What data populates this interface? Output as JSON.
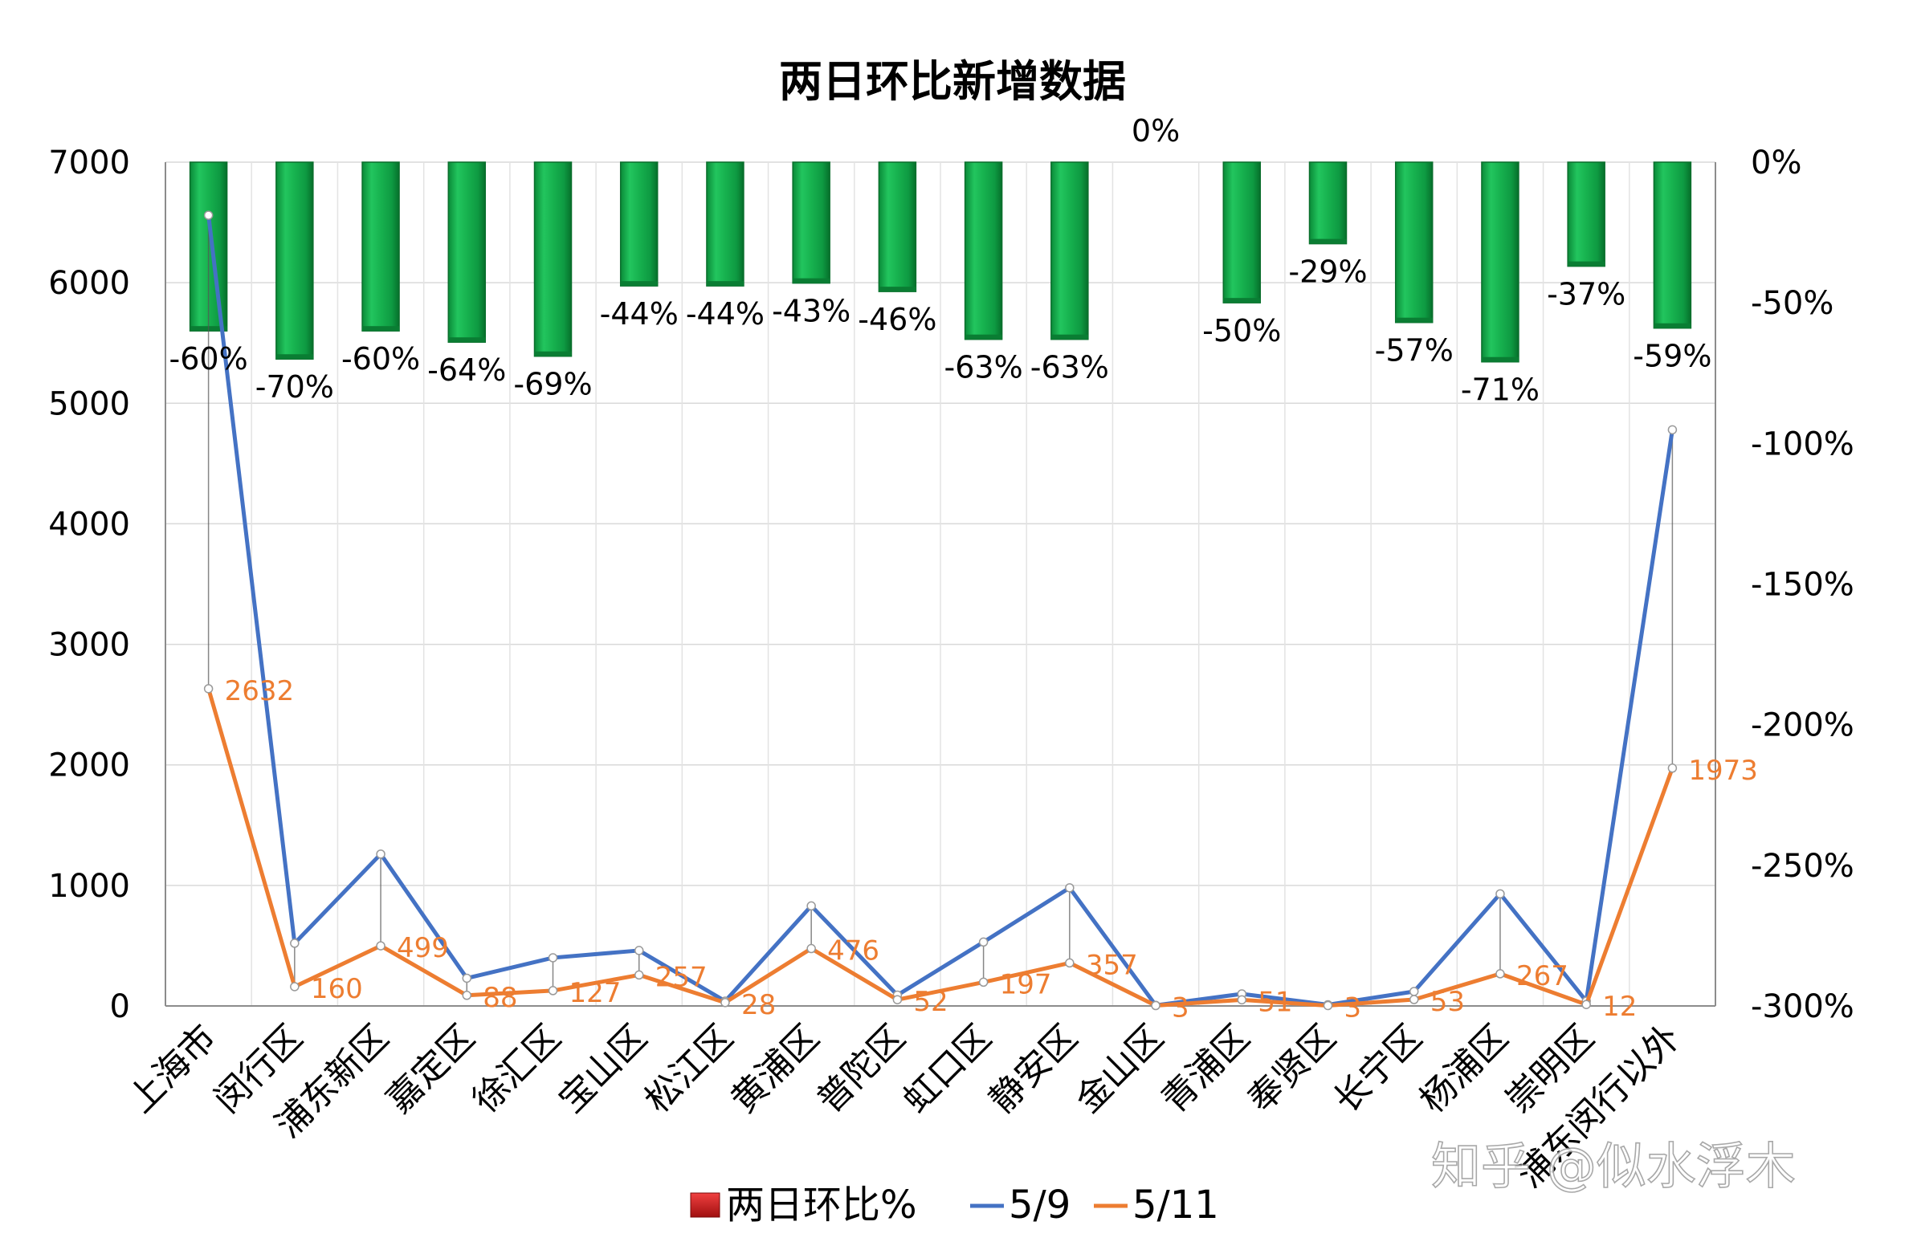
{
  "chart_data": {
    "type": "bar+line",
    "title": "两日环比新增数据",
    "categories": [
      "上海市",
      "闵行区",
      "浦东新区",
      "嘉定区",
      "徐汇区",
      "宝山区",
      "松江区",
      "黄浦区",
      "普陀区",
      "虹口区",
      "静安区",
      "金山区",
      "青浦区",
      "奉贤区",
      "长宁区",
      "杨浦区",
      "崇明区",
      "浦东闵行以外"
    ],
    "y_left": {
      "ylim": [
        0,
        7000
      ],
      "ticks": [
        "0",
        "1000",
        "2000",
        "3000",
        "4000",
        "5000",
        "6000",
        "7000"
      ]
    },
    "y_right": {
      "ylim": [
        -300,
        0
      ],
      "ticks": [
        "-300%",
        "-250%",
        "-200%",
        "-150%",
        "-100%",
        "-50%",
        "0%"
      ]
    },
    "bar_series": {
      "name": "两日环比%",
      "axis": "right",
      "values": [
        -60,
        -70,
        -60,
        -64,
        -69,
        -44,
        -44,
        -43,
        -46,
        -63,
        -63,
        0,
        -50,
        -29,
        -57,
        -71,
        -37,
        -59
      ],
      "labels": [
        "-60%",
        "-70%",
        "-60%",
        "-64%",
        "-69%",
        "-44%",
        "-44%",
        "-43%",
        "-46%",
        "-63%",
        "-63%",
        "0%",
        "-50%",
        "-29%",
        "-57%",
        "-71%",
        "-37%",
        "-59%"
      ]
    },
    "line_series": [
      {
        "name": "5/9",
        "axis": "left",
        "values": [
          6560,
          520,
          1260,
          230,
          400,
          460,
          40,
          830,
          90,
          530,
          980,
          5,
          100,
          10,
          120,
          930,
          40,
          4780
        ]
      },
      {
        "name": "5/11",
        "axis": "left",
        "values": [
          2632,
          160,
          499,
          88,
          127,
          257,
          28,
          476,
          52,
          197,
          357,
          3,
          51,
          3,
          53,
          267,
          12,
          1973
        ],
        "labels": [
          "2632",
          "160",
          "499",
          "88",
          "127",
          "257",
          "28",
          "476",
          "52",
          "197",
          "357",
          "3",
          "51",
          "3",
          "53",
          "267",
          "12",
          "1973"
        ]
      }
    ],
    "legend": {
      "position": "bottom"
    },
    "grid": true,
    "colors": {
      "bars": "#12B14B",
      "bars_dark": "#0A7D33",
      "line_5_9": "#4472C4",
      "line_5_11": "#ED7D31",
      "legend_bar": "#D62020"
    }
  },
  "watermark": "知乎 @似水浮木"
}
